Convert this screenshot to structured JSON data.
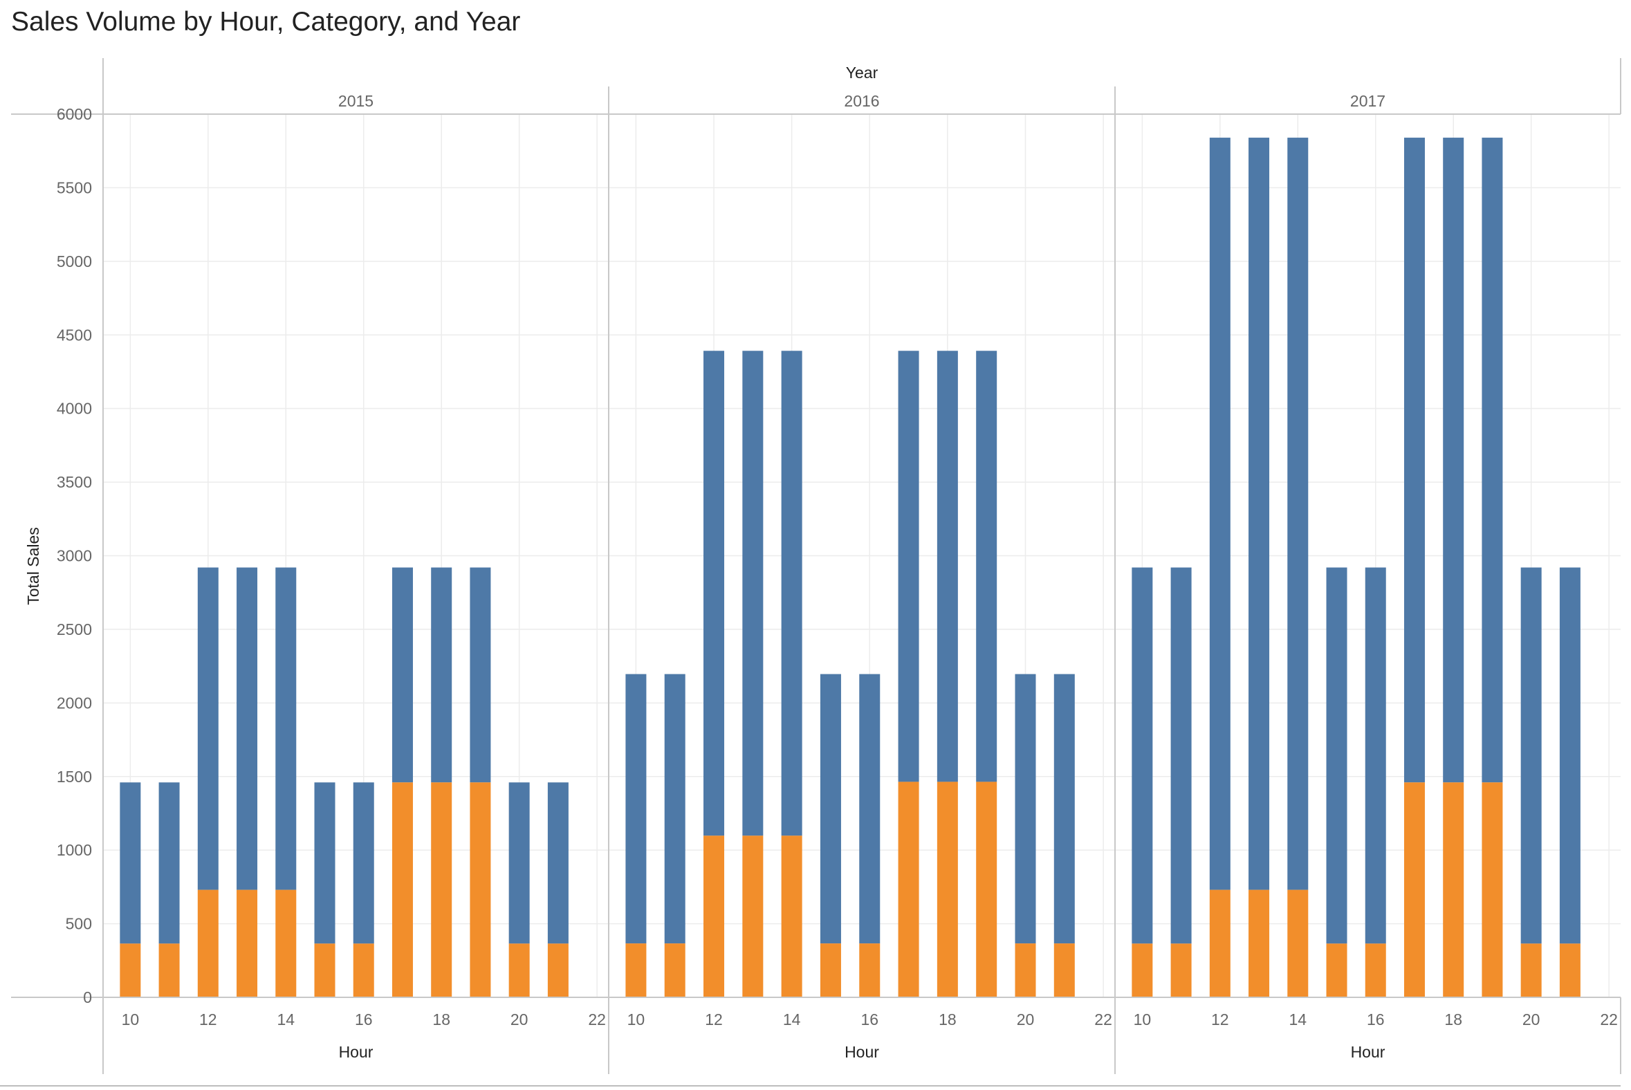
{
  "chart_data": {
    "type": "bar",
    "stacked": true,
    "title": "Sales Volume by Hour, Category, and Year",
    "column_header_title": "Year",
    "xlabel": "Hour",
    "ylabel": "Total Sales",
    "ylim": [
      0,
      6000
    ],
    "y_ticks": [
      0,
      500,
      1000,
      1500,
      2000,
      2500,
      3000,
      3500,
      4000,
      4500,
      5000,
      5500,
      6000
    ],
    "x_ticks": [
      10,
      12,
      14,
      16,
      18,
      20,
      22
    ],
    "xlim": [
      9.3,
      22.3
    ],
    "grid": true,
    "legend": "none",
    "colors": {
      "bottom_segment": "#f28e2b",
      "top_segment": "#4e79a7"
    },
    "panels": [
      {
        "year": "2015",
        "hours": [
          10,
          11,
          12,
          13,
          14,
          15,
          16,
          17,
          18,
          19,
          20,
          21
        ],
        "bottom_values": [
          365,
          365,
          730,
          730,
          730,
          365,
          365,
          1460,
          1460,
          1460,
          365,
          365
        ],
        "totals": [
          1460,
          1460,
          2920,
          2920,
          2920,
          1460,
          1460,
          2920,
          2920,
          2920,
          1460,
          1460
        ]
      },
      {
        "year": "2016",
        "hours": [
          10,
          11,
          12,
          13,
          14,
          15,
          16,
          17,
          18,
          19,
          20,
          21
        ],
        "bottom_values": [
          366,
          366,
          1098,
          1098,
          1098,
          366,
          366,
          1464,
          1464,
          1464,
          366,
          366
        ],
        "totals": [
          2196,
          2196,
          4392,
          4392,
          4392,
          2196,
          2196,
          4392,
          4392,
          4392,
          2196,
          2196
        ]
      },
      {
        "year": "2017",
        "hours": [
          10,
          11,
          12,
          13,
          14,
          15,
          16,
          17,
          18,
          19,
          20,
          21
        ],
        "bottom_values": [
          365,
          365,
          730,
          730,
          730,
          365,
          365,
          1460,
          1460,
          1460,
          365,
          365
        ],
        "totals": [
          2920,
          2920,
          5840,
          5840,
          5840,
          2920,
          2920,
          5840,
          5840,
          5840,
          2920,
          2920
        ]
      }
    ]
  }
}
